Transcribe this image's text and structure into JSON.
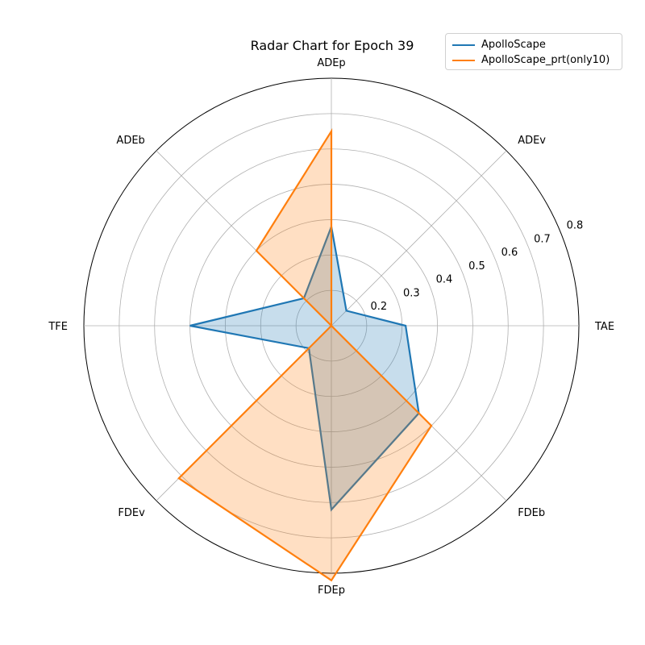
{
  "chart_data": {
    "type": "radar",
    "title": "Radar Chart for Epoch 39",
    "categories": [
      "TAE",
      "ADEv",
      "ADEp",
      "ADEb",
      "TFE",
      "FDEv",
      "FDEp",
      "FDEb"
    ],
    "rlim": [
      0.1,
      0.8
    ],
    "rticks": [
      0.2,
      0.3,
      0.4,
      0.5,
      0.6,
      0.7,
      0.8
    ],
    "rtick_labels": [
      "0.2",
      "0.3",
      "0.4",
      "0.5",
      "0.6",
      "0.7",
      "0.8"
    ],
    "grid": true,
    "legend_position": "top-right",
    "series": [
      {
        "name": "ApolloScape",
        "color": "#1f77b4",
        "values": [
          0.31,
          0.16,
          0.38,
          0.21,
          0.5,
          0.19,
          0.62,
          0.45
        ]
      },
      {
        "name": "ApolloScape_prt(only10)",
        "color": "#ff7f0e",
        "values": [
          0.0,
          0.0,
          0.65,
          0.4,
          0.0,
          0.71,
          0.82,
          0.5
        ]
      }
    ]
  }
}
